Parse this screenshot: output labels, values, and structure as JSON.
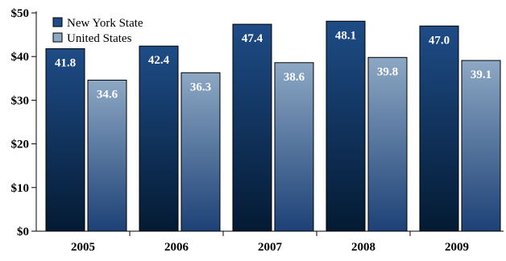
{
  "chart_data": {
    "type": "bar",
    "title": "",
    "xlabel": "",
    "ylabel": "",
    "categories": [
      "2005",
      "2006",
      "2007",
      "2008",
      "2009"
    ],
    "series": [
      {
        "name": "New York State",
        "values": [
          41.8,
          42.4,
          47.4,
          48.1,
          47.0
        ],
        "labels": [
          "41.8",
          "42.4",
          "47.4",
          "48.1",
          "47.0"
        ]
      },
      {
        "name": "United States",
        "values": [
          34.6,
          36.3,
          38.6,
          39.8,
          39.1
        ],
        "labels": [
          "34.6",
          "36.3",
          "38.6",
          "39.8",
          "39.1"
        ]
      }
    ],
    "ylim": [
      0,
      50
    ],
    "yticks": [
      0,
      10,
      20,
      30,
      40,
      50
    ],
    "ytick_labels": [
      "$0",
      "$10",
      "$20",
      "$30",
      "$40",
      "$50"
    ],
    "legend_position": "top-left",
    "grid": false,
    "colors": {
      "ny_top": "#1e4c86",
      "ny_bottom": "#041a33",
      "us_top": "#8da8c4",
      "us_bottom": "#1d4176",
      "border": "#000000"
    }
  }
}
